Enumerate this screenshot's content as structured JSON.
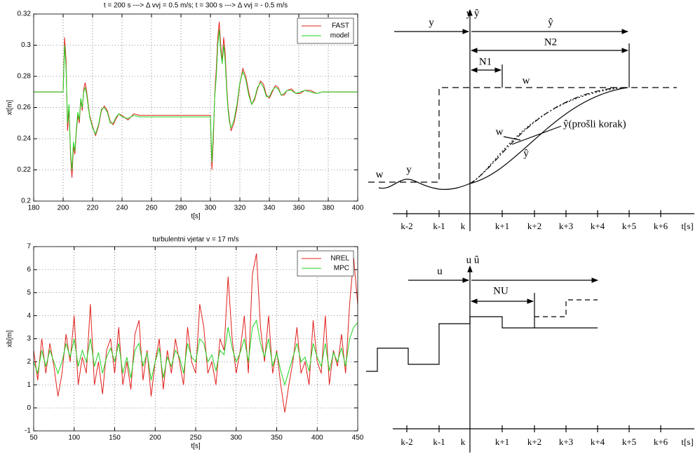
{
  "chart_data": [
    {
      "type": "line",
      "title": "t = 200 s ---> Δ vvj = 0.5 m/s; t = 300 s ---> Δ vvj = - 0.5 m/s",
      "xlabel": "t[s]",
      "ylabel": "xt[m]",
      "x": [
        180,
        199,
        200,
        201,
        202,
        203,
        204,
        205,
        206,
        207,
        208,
        209,
        210,
        211,
        212,
        213,
        214,
        215,
        216,
        218,
        220,
        222,
        224,
        226,
        228,
        230,
        232,
        234,
        236,
        238,
        240,
        244,
        248,
        252,
        260,
        270,
        280,
        290,
        300,
        301,
        302,
        303,
        304,
        305,
        306,
        307,
        308,
        309,
        310,
        311,
        312,
        313,
        314,
        316,
        318,
        320,
        322,
        324,
        326,
        328,
        330,
        332,
        334,
        336,
        338,
        340,
        342,
        344,
        346,
        348,
        350,
        352,
        355,
        358,
        361,
        364,
        368,
        372,
        376,
        380,
        390,
        400
      ],
      "series": [
        {
          "name": "FAST",
          "color": "#e0201b",
          "values": [
            0.27,
            0.27,
            0.27,
            0.305,
            0.29,
            0.245,
            0.26,
            0.23,
            0.215,
            0.235,
            0.23,
            0.245,
            0.255,
            0.25,
            0.265,
            0.258,
            0.272,
            0.276,
            0.27,
            0.255,
            0.248,
            0.242,
            0.248,
            0.258,
            0.261,
            0.258,
            0.251,
            0.249,
            0.253,
            0.256,
            0.255,
            0.252,
            0.256,
            0.255,
            0.255,
            0.255,
            0.255,
            0.255,
            0.255,
            0.22,
            0.24,
            0.27,
            0.285,
            0.305,
            0.315,
            0.3,
            0.29,
            0.305,
            0.295,
            0.275,
            0.26,
            0.252,
            0.245,
            0.25,
            0.26,
            0.275,
            0.285,
            0.28,
            0.27,
            0.262,
            0.265,
            0.272,
            0.277,
            0.275,
            0.268,
            0.266,
            0.27,
            0.274,
            0.273,
            0.268,
            0.268,
            0.271,
            0.272,
            0.269,
            0.269,
            0.271,
            0.271,
            0.269,
            0.27,
            0.27,
            0.27,
            0.27
          ]
        },
        {
          "name": "model",
          "color": "#1ed41e",
          "values": [
            0.27,
            0.27,
            0.27,
            0.3,
            0.285,
            0.25,
            0.262,
            0.232,
            0.22,
            0.238,
            0.232,
            0.247,
            0.257,
            0.252,
            0.266,
            0.26,
            0.27,
            0.273,
            0.268,
            0.254,
            0.247,
            0.243,
            0.249,
            0.259,
            0.26,
            0.257,
            0.25,
            0.25,
            0.254,
            0.256,
            0.254,
            0.253,
            0.255,
            0.254,
            0.254,
            0.254,
            0.254,
            0.254,
            0.254,
            0.225,
            0.245,
            0.268,
            0.28,
            0.3,
            0.31,
            0.296,
            0.288,
            0.3,
            0.29,
            0.272,
            0.258,
            0.25,
            0.247,
            0.252,
            0.262,
            0.276,
            0.283,
            0.278,
            0.268,
            0.262,
            0.266,
            0.273,
            0.276,
            0.273,
            0.267,
            0.267,
            0.271,
            0.273,
            0.272,
            0.268,
            0.269,
            0.271,
            0.271,
            0.269,
            0.27,
            0.271,
            0.27,
            0.269,
            0.27,
            0.27,
            0.27,
            0.27
          ]
        }
      ],
      "xlim": [
        180,
        400
      ],
      "xticks": [
        180,
        200,
        220,
        240,
        260,
        280,
        300,
        320,
        340,
        360,
        380,
        400
      ],
      "ylim": [
        0.2,
        0.32
      ],
      "yticks": [
        0.2,
        0.22,
        0.24,
        0.26,
        0.28,
        0.3,
        0.32
      ],
      "grid": true,
      "legend": "upper-right"
    },
    {
      "type": "line",
      "title": "turbulentni vjetar v = 17 m/s",
      "xlabel": "t[s]",
      "ylabel": "xb[m]",
      "x": [
        50,
        55,
        60,
        65,
        70,
        75,
        80,
        85,
        90,
        95,
        100,
        105,
        110,
        115,
        120,
        125,
        130,
        135,
        140,
        145,
        150,
        155,
        160,
        165,
        170,
        175,
        180,
        185,
        190,
        195,
        200,
        205,
        210,
        215,
        220,
        225,
        230,
        235,
        240,
        245,
        250,
        255,
        260,
        265,
        270,
        275,
        280,
        285,
        290,
        295,
        300,
        305,
        310,
        315,
        320,
        325,
        330,
        335,
        340,
        345,
        350,
        355,
        360,
        365,
        370,
        375,
        380,
        385,
        390,
        395,
        400,
        405,
        410,
        415,
        420,
        425,
        430,
        435,
        440,
        445,
        450
      ],
      "series": [
        {
          "name": "NREL",
          "color": "#e0201b",
          "values": [
            2.5,
            1.2,
            3.0,
            1.5,
            2.8,
            1.8,
            0.5,
            1.5,
            3.2,
            2.0,
            4.0,
            1.0,
            2.2,
            1.5,
            4.5,
            1.0,
            2.0,
            0.6,
            2.5,
            3.0,
            1.5,
            3.5,
            1.0,
            2.0,
            0.8,
            3.2,
            3.8,
            1.2,
            2.5,
            0.5,
            2.0,
            3.0,
            0.8,
            2.5,
            1.5,
            3.0,
            2.0,
            1.0,
            3.5,
            2.0,
            1.5,
            4.5,
            3.5,
            1.5,
            2.0,
            1.0,
            3.0,
            2.5,
            5.7,
            3.0,
            1.5,
            2.5,
            4.0,
            1.5,
            5.8,
            6.7,
            3.5,
            2.0,
            4.0,
            1.5,
            2.5,
            1.0,
            -0.2,
            1.0,
            2.0,
            3.5,
            1.5,
            2.0,
            1.0,
            3.8,
            2.0,
            1.5,
            4.0,
            1.0,
            2.5,
            1.8,
            3.2,
            1.5,
            4.5,
            6.5,
            4.5
          ]
        },
        {
          "name": "MPC",
          "color": "#1ed41e",
          "values": [
            2.0,
            1.5,
            2.5,
            1.8,
            2.5,
            2.0,
            1.5,
            2.0,
            2.8,
            2.2,
            3.0,
            1.8,
            2.5,
            2.0,
            3.0,
            1.8,
            2.4,
            1.5,
            2.2,
            2.6,
            2.0,
            2.8,
            1.5,
            2.2,
            1.3,
            2.5,
            2.8,
            1.8,
            2.4,
            1.2,
            2.0,
            2.6,
            1.3,
            2.2,
            1.8,
            2.5,
            2.2,
            1.5,
            2.8,
            2.2,
            2.0,
            3.0,
            2.8,
            2.0,
            2.3,
            1.6,
            2.5,
            2.3,
            3.5,
            2.6,
            2.0,
            2.4,
            3.0,
            2.0,
            3.5,
            3.8,
            2.8,
            2.2,
            3.0,
            1.8,
            2.4,
            1.6,
            1.0,
            1.6,
            2.2,
            2.8,
            2.0,
            2.2,
            1.6,
            2.8,
            2.2,
            1.8,
            2.8,
            1.6,
            2.4,
            2.0,
            2.6,
            1.8,
            3.0,
            3.5,
            3.7
          ]
        }
      ],
      "xlim": [
        50,
        450
      ],
      "xticks": [
        50,
        100,
        150,
        200,
        250,
        300,
        350,
        400,
        450
      ],
      "ylim": [
        -1,
        7
      ],
      "yticks": [
        -1,
        0,
        1,
        2,
        3,
        4,
        5,
        6,
        7
      ],
      "grid": true,
      "legend": "upper-right"
    }
  ],
  "prediction_diagram": {
    "labels": [
      "y",
      "y ŷ",
      "ŷ",
      "N2",
      "N1",
      "w",
      "w",
      "y",
      "w",
      "ŷ(prošli korak)",
      "ŷ"
    ],
    "time_axis": [
      "k-2",
      "k-1",
      "k",
      "k+1",
      "k+2",
      "k+3",
      "k+4",
      "k+5",
      "k+6",
      "t[s]"
    ]
  },
  "control_diagram": {
    "labels": [
      "u",
      "u û",
      "NU"
    ],
    "time_axis": [
      "k-2",
      "k-1",
      "k",
      "k+1",
      "k+2",
      "k+3",
      "k+4",
      "k+5",
      "k+6",
      "t[s]"
    ]
  }
}
